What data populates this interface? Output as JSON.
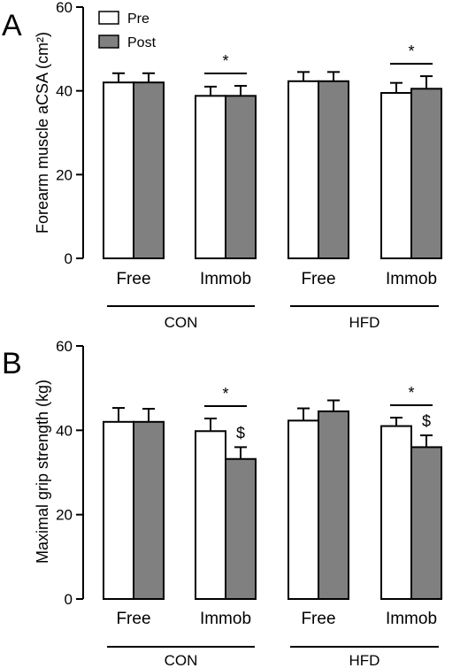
{
  "colors": {
    "pre": "#ffffff",
    "post": "#808080",
    "stroke": "#000000"
  },
  "legend": {
    "pre": "Pre",
    "post": "Post",
    "placement": "top-left"
  },
  "chart_data": [
    {
      "panel": "A",
      "type": "bar",
      "ylabel": "Forearm muscle aCSA (cm²)",
      "ylim": [
        0,
        60
      ],
      "yticks": [
        "0",
        "20",
        "40",
        "60"
      ],
      "categories": [
        "Free",
        "Immob",
        "Free",
        "Immob"
      ],
      "groups": [
        {
          "label": "CON",
          "categories": [
            0,
            1
          ]
        },
        {
          "label": "HFD",
          "categories": [
            2,
            3
          ]
        }
      ],
      "series": [
        {
          "name": "Pre",
          "values": [
            42.0,
            38.8,
            42.3,
            39.5
          ],
          "errors": [
            2.2,
            2.2,
            2.2,
            2.4
          ]
        },
        {
          "name": "Post",
          "values": [
            42.0,
            38.8,
            42.3,
            40.5
          ],
          "errors": [
            2.2,
            2.4,
            2.2,
            3.0
          ]
        }
      ],
      "annotations": [
        {
          "text": "*",
          "category": 1,
          "type": "bracket"
        },
        {
          "text": "*",
          "category": 3,
          "type": "bracket"
        }
      ]
    },
    {
      "panel": "B",
      "type": "bar",
      "ylabel": "Maximal grip strength (kg)",
      "ylim": [
        0,
        60
      ],
      "yticks": [
        "0",
        "20",
        "40",
        "60"
      ],
      "categories": [
        "Free",
        "Immob",
        "Free",
        "Immob"
      ],
      "groups": [
        {
          "label": "CON",
          "categories": [
            0,
            1
          ]
        },
        {
          "label": "HFD",
          "categories": [
            2,
            3
          ]
        }
      ],
      "series": [
        {
          "name": "Pre",
          "values": [
            42.0,
            39.8,
            42.3,
            41.0
          ],
          "errors": [
            3.3,
            3.0,
            2.9,
            2.0
          ]
        },
        {
          "name": "Post",
          "values": [
            42.0,
            33.2,
            44.5,
            36.0
          ],
          "errors": [
            3.1,
            2.8,
            2.6,
            2.8
          ]
        }
      ],
      "annotations": [
        {
          "text": "*",
          "category": 1,
          "type": "bracket"
        },
        {
          "text": "*",
          "category": 3,
          "type": "bracket"
        },
        {
          "text": "$",
          "category": 1,
          "type": "post-bar"
        },
        {
          "text": "$",
          "category": 3,
          "type": "post-bar"
        }
      ]
    }
  ]
}
